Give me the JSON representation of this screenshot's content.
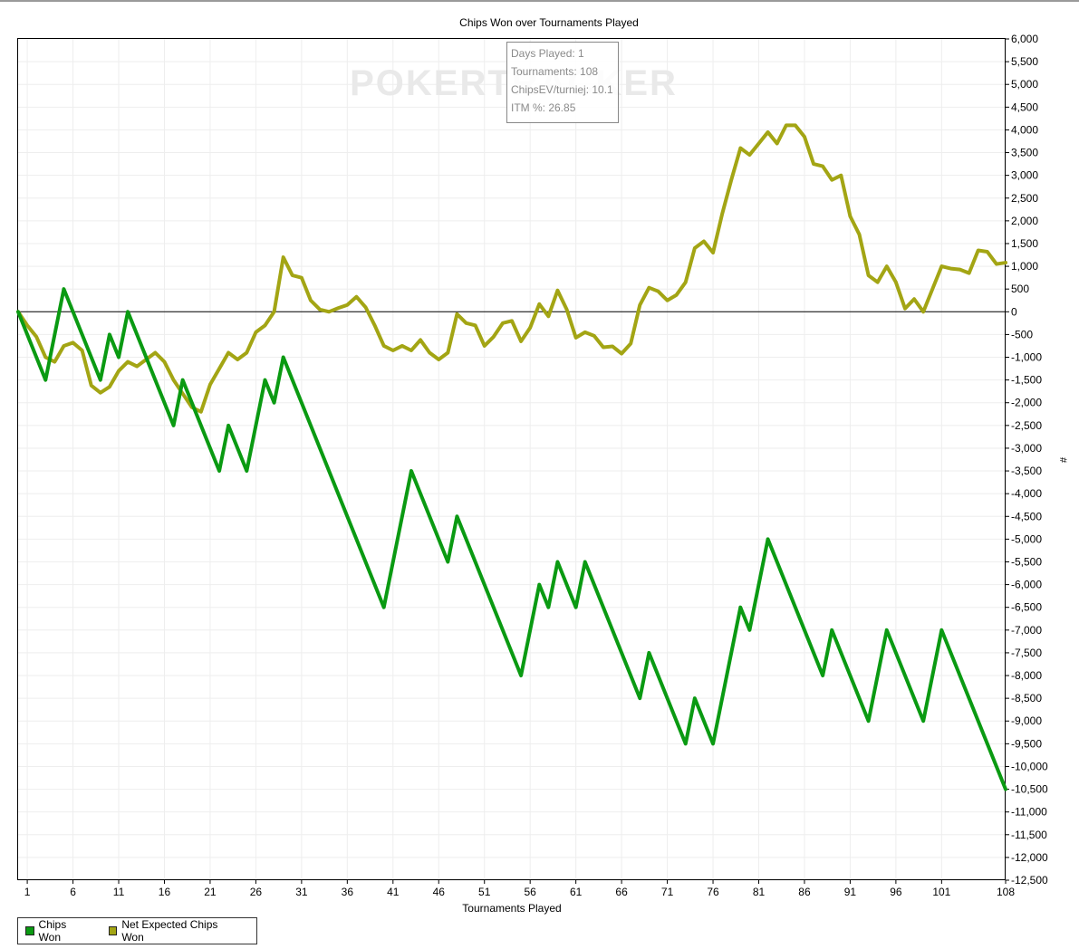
{
  "chart_data": {
    "type": "line",
    "title": "Chips Won over Tournaments Played",
    "xlabel": "Tournaments Played",
    "ylabel": "#",
    "xlim": [
      0,
      108
    ],
    "ylim": [
      -12500,
      6000
    ],
    "xticks": [
      1,
      6,
      11,
      16,
      21,
      26,
      31,
      36,
      41,
      46,
      51,
      56,
      61,
      66,
      71,
      76,
      81,
      86,
      91,
      96,
      101,
      108
    ],
    "ytick_step": 500,
    "grid": true,
    "legend_position": "bottom-left",
    "series": [
      {
        "name": "Chips Won",
        "color": "#0a9a12",
        "x": [
          0,
          3,
          5,
          9,
          10,
          11,
          12,
          17,
          18,
          22,
          23,
          25,
          27,
          28,
          29,
          40,
          43,
          47,
          48,
          55,
          57,
          58,
          59,
          61,
          62,
          68,
          69,
          73,
          74,
          76,
          79,
          80,
          82,
          88,
          89,
          93,
          95,
          99,
          101,
          108
        ],
        "values": [
          0,
          -1500,
          500,
          -1500,
          -500,
          -1000,
          0,
          -2500,
          -1500,
          -3500,
          -2500,
          -3500,
          -1500,
          -2000,
          -1000,
          -6500,
          -3500,
          -5500,
          -4500,
          -8000,
          -6000,
          -6500,
          -5500,
          -6500,
          -5500,
          -8500,
          -7500,
          -9500,
          -8500,
          -9500,
          -6500,
          -7000,
          -5000,
          -8000,
          -7000,
          -9000,
          -7000,
          -9000,
          -7000,
          -10500
        ]
      },
      {
        "name": "Net Expected Chips Won",
        "color": "#a3a514",
        "x": [
          0,
          1,
          2,
          3,
          4,
          5,
          6,
          7,
          8,
          9,
          10,
          11,
          12,
          13,
          14,
          15,
          16,
          17,
          18,
          19,
          20,
          21,
          22,
          23,
          24,
          25,
          26,
          27,
          28,
          29,
          30,
          31,
          32,
          33,
          34,
          35,
          36,
          37,
          38,
          39,
          40,
          41,
          42,
          43,
          44,
          45,
          46,
          47,
          48,
          49,
          50,
          51,
          52,
          53,
          54,
          55,
          56,
          57,
          58,
          59,
          60,
          61,
          62,
          63,
          64,
          65,
          66,
          67,
          68,
          69,
          70,
          71,
          72,
          73,
          74,
          75,
          76,
          77,
          78,
          79,
          80,
          81,
          82,
          83,
          84,
          85,
          86,
          87,
          88,
          89,
          90,
          91,
          92,
          93,
          94,
          95,
          96,
          97,
          98,
          99,
          100,
          101,
          102,
          103,
          104,
          105,
          106,
          107,
          108
        ],
        "values": [
          0,
          -300,
          -550,
          -1000,
          -1100,
          -750,
          -680,
          -850,
          -1620,
          -1780,
          -1650,
          -1300,
          -1100,
          -1200,
          -1050,
          -900,
          -1100,
          -1500,
          -1800,
          -2100,
          -2200,
          -1600,
          -1250,
          -900,
          -1050,
          -900,
          -450,
          -300,
          0,
          1200,
          800,
          750,
          250,
          50,
          0,
          80,
          150,
          330,
          100,
          -300,
          -750,
          -850,
          -750,
          -850,
          -620,
          -900,
          -1050,
          -900,
          -50,
          -250,
          -300,
          -750,
          -550,
          -250,
          -200,
          -650,
          -350,
          170,
          -100,
          470,
          50,
          -570,
          -450,
          -530,
          -780,
          -760,
          -920,
          -700,
          150,
          530,
          450,
          250,
          370,
          650,
          1400,
          1550,
          1300,
          2150,
          2900,
          3600,
          3450,
          3700,
          3950,
          3700,
          4100,
          4100,
          3850,
          3250,
          3200,
          2900,
          3000,
          2100,
          1700,
          800,
          650,
          1000,
          650,
          70,
          280,
          0,
          500,
          1000,
          950,
          930,
          850,
          1350,
          1320,
          1050,
          1080
        ]
      }
    ]
  },
  "tooltip": {
    "lines": [
      "Days Played: 1",
      "Tournaments: 108",
      "ChipsEV/turniej: 10.1",
      "ITM %: 26.85"
    ]
  },
  "watermark": {
    "text": "POKERTRACKER"
  }
}
